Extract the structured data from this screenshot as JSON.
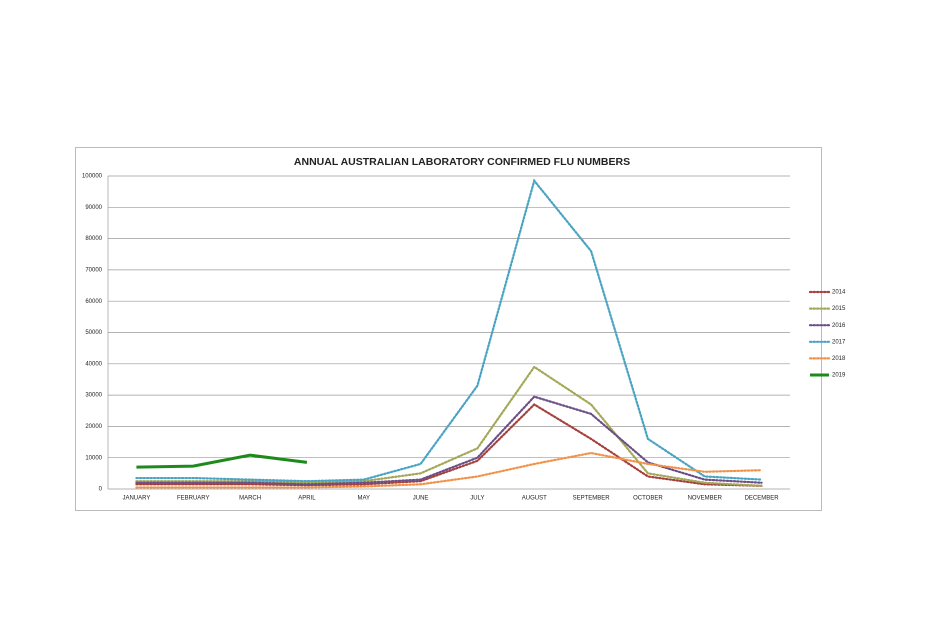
{
  "chart_data": {
    "type": "line",
    "title": "ANNUAL AUSTRALIAN LABORATORY CONFIRMED FLU NUMBERS",
    "categories": [
      "JANUARY",
      "FEBRUARY",
      "MARCH",
      "APRIL",
      "MAY",
      "JUNE",
      "JULY",
      "AUGUST",
      "SEPTEMBER",
      "OCTOBER",
      "NOVEMBER",
      "DECEMBER"
    ],
    "series": [
      {
        "name": "2014",
        "color": "#a5413d",
        "style": "dotted",
        "values": [
          1500,
          1500,
          1500,
          1200,
          1500,
          2500,
          9000,
          27000,
          16000,
          4000,
          1500,
          1000
        ]
      },
      {
        "name": "2015",
        "color": "#a3a857",
        "style": "dotted",
        "values": [
          2500,
          2500,
          2500,
          2000,
          2500,
          5000,
          13000,
          39000,
          27000,
          5000,
          2000,
          1000
        ]
      },
      {
        "name": "2016",
        "color": "#6b4f86",
        "style": "dotted",
        "values": [
          2000,
          2000,
          2000,
          1500,
          2000,
          3000,
          10000,
          29500,
          24000,
          8500,
          3000,
          2000
        ]
      },
      {
        "name": "2017",
        "color": "#4aa3c2",
        "style": "dotted",
        "values": [
          3500,
          3500,
          3000,
          2500,
          3000,
          8000,
          33000,
          98500,
          76000,
          16000,
          4000,
          3000
        ]
      },
      {
        "name": "2018",
        "color": "#f0924a",
        "style": "dotted",
        "values": [
          500,
          500,
          500,
          500,
          800,
          1500,
          4000,
          8000,
          11500,
          8000,
          5500,
          6000
        ]
      },
      {
        "name": "2019",
        "color": "#1e8a1e",
        "style": "solid",
        "values": [
          7000,
          7300,
          10800,
          8500,
          null,
          null,
          null,
          null,
          null,
          null,
          null,
          null
        ]
      }
    ],
    "ylim": [
      0,
      100000
    ],
    "yticks": [
      0,
      10000,
      20000,
      30000,
      40000,
      50000,
      60000,
      70000,
      80000,
      90000,
      100000
    ],
    "grid": true,
    "legend": "right"
  }
}
